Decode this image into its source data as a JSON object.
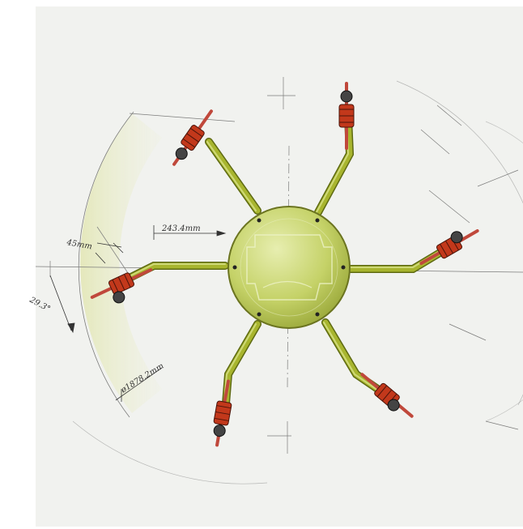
{
  "drawing": {
    "annotations": {
      "arm_offset": "243.4mm",
      "width": "45mm",
      "angle": "29.3°",
      "radius": "ø1878.2mm"
    }
  },
  "colors": {
    "hub": "#c7d46a",
    "arm": "#a8b52e",
    "coil": "#c2381b",
    "prop": "#c0483b",
    "line": "#3a3a3a",
    "sheet": "#f1f2ef"
  }
}
